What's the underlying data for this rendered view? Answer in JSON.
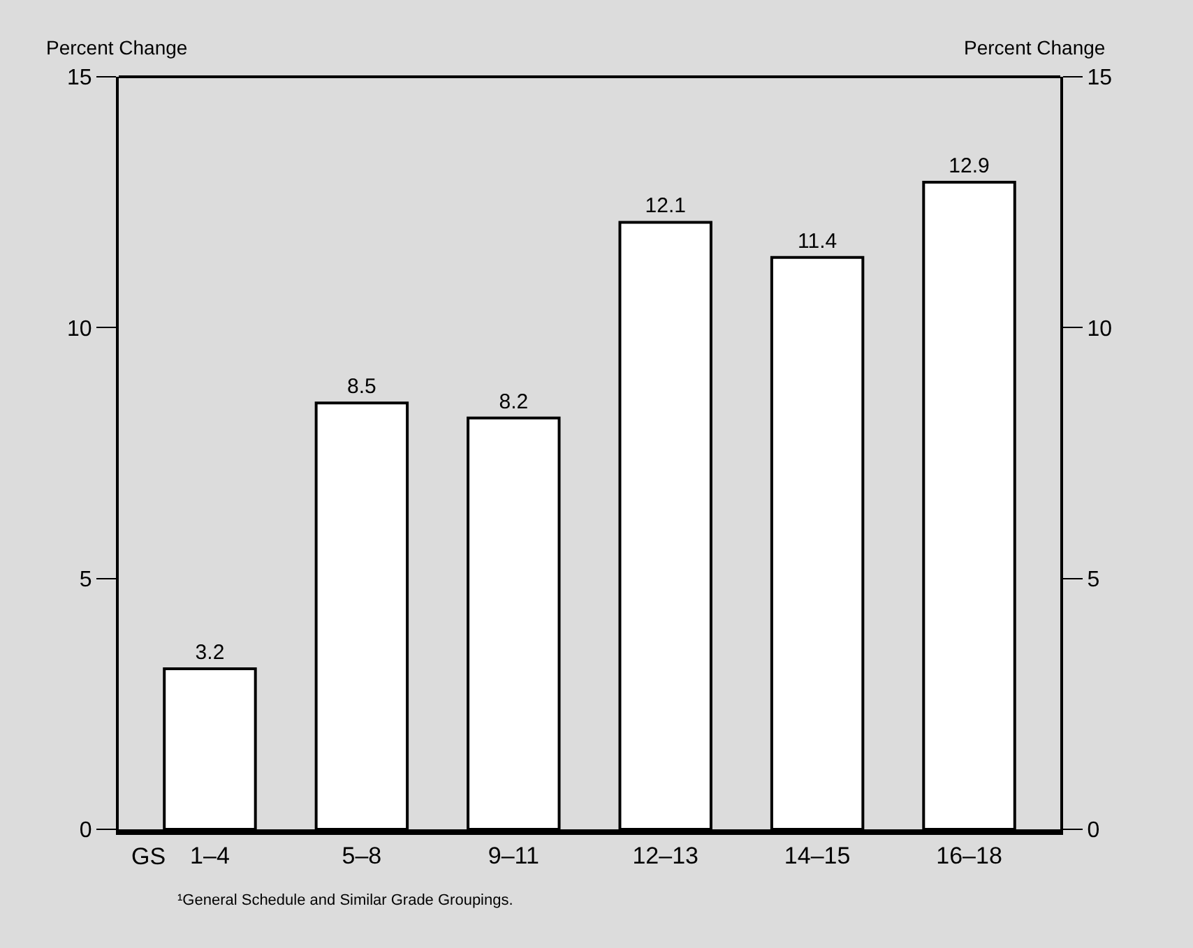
{
  "chart_data": {
    "type": "bar",
    "xlabel": "GS",
    "ylabel": "Percent Change",
    "y2label": "Percent Change",
    "categories": [
      "1–4",
      "5–8",
      "9–11",
      "12–13",
      "14–15",
      "16–18"
    ],
    "values": [
      3.2,
      8.5,
      8.2,
      12.1,
      11.4,
      12.9
    ],
    "color": "#ffffff",
    "ylim": [
      0,
      15
    ],
    "yticks": [
      0,
      5,
      10,
      15
    ],
    "y2lim": [
      0,
      15
    ],
    "y2ticks": [
      0,
      5,
      10,
      15
    ],
    "data_labels": true,
    "grid": false,
    "legend": false,
    "annotations": [
      "¹General Schedule and Similar Grade Groupings."
    ]
  }
}
